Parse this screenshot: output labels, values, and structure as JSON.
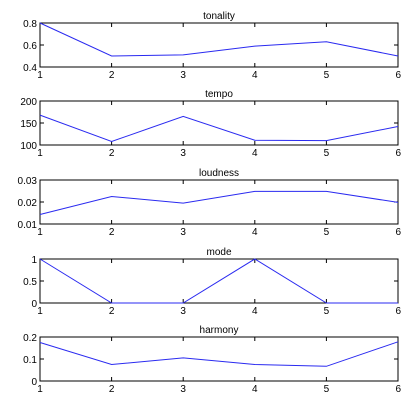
{
  "colors": {
    "line": "#2a2af0",
    "axis": "#000000",
    "background": "#ffffff"
  },
  "chart_data": [
    {
      "type": "line",
      "title": "tonality",
      "x": [
        1,
        2,
        3,
        4,
        5,
        6
      ],
      "values": [
        0.8,
        0.5,
        0.51,
        0.59,
        0.63,
        0.5
      ],
      "xlim": [
        1,
        6
      ],
      "ylim": [
        0.4,
        0.8
      ],
      "xticks": [
        "1",
        "2",
        "3",
        "4",
        "5",
        "6"
      ],
      "yticks": [
        0.4,
        0.6,
        0.8
      ],
      "ytick_labels": [
        "0.4",
        "0.6",
        "0.8"
      ],
      "grid": false
    },
    {
      "type": "line",
      "title": "tempo",
      "x": [
        1,
        2,
        3,
        4,
        5,
        6
      ],
      "values": [
        168,
        108,
        165,
        111,
        110,
        142
      ],
      "xlim": [
        1,
        6
      ],
      "ylim": [
        100,
        200
      ],
      "xticks": [
        "1",
        "2",
        "3",
        "4",
        "5",
        "6"
      ],
      "yticks": [
        100,
        150,
        200
      ],
      "ytick_labels": [
        "100",
        "150",
        "200"
      ],
      "grid": false
    },
    {
      "type": "line",
      "title": "loudness",
      "x": [
        1,
        2,
        3,
        4,
        5,
        6
      ],
      "values": [
        0.0143,
        0.0225,
        0.0195,
        0.0248,
        0.0248,
        0.0198
      ],
      "xlim": [
        1,
        6
      ],
      "ylim": [
        0.01,
        0.03
      ],
      "xticks": [
        "1",
        "2",
        "3",
        "4",
        "5",
        "6"
      ],
      "yticks": [
        0.01,
        0.02,
        0.03
      ],
      "ytick_labels": [
        "0.01",
        "0.02",
        "0.03"
      ],
      "grid": false
    },
    {
      "type": "line",
      "title": "mode",
      "x": [
        1,
        2,
        3,
        4,
        5,
        6
      ],
      "values": [
        1,
        0,
        0,
        1,
        0,
        0
      ],
      "xlim": [
        1,
        6
      ],
      "ylim": [
        0,
        1
      ],
      "xticks": [
        "1",
        "2",
        "3",
        "4",
        "5",
        "6"
      ],
      "yticks": [
        0,
        0.5,
        1
      ],
      "ytick_labels": [
        "0",
        "0.5",
        "1"
      ],
      "grid": false
    },
    {
      "type": "line",
      "title": "harmony",
      "x": [
        1,
        2,
        3,
        4,
        5,
        6
      ],
      "values": [
        0.175,
        0.075,
        0.105,
        0.075,
        0.067,
        0.178
      ],
      "xlim": [
        1,
        6
      ],
      "ylim": [
        0,
        0.2
      ],
      "xticks": [
        "1",
        "2",
        "3",
        "4",
        "5",
        "6"
      ],
      "yticks": [
        0,
        0.1,
        0.2
      ],
      "ytick_labels": [
        "0",
        "0.1",
        "0.2"
      ],
      "grid": false
    }
  ]
}
